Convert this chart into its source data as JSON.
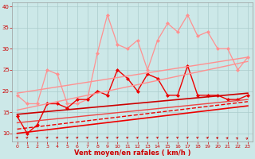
{
  "xlabel": "Vent moyen/en rafales ( km/h )",
  "xlim": [
    -0.5,
    23.5
  ],
  "ylim": [
    8,
    41
  ],
  "yticks": [
    10,
    15,
    20,
    25,
    30,
    35,
    40
  ],
  "xticks": [
    0,
    1,
    2,
    3,
    4,
    5,
    6,
    7,
    8,
    9,
    10,
    11,
    12,
    13,
    14,
    15,
    16,
    17,
    18,
    19,
    20,
    21,
    22,
    23
  ],
  "bg_color": "#cce8e8",
  "grid_color": "#aacccc",
  "series": [
    {
      "x": [
        0,
        1,
        2,
        3,
        4,
        5,
        6,
        7,
        8,
        9,
        10,
        11,
        12,
        13,
        14,
        15,
        16,
        17,
        18,
        19,
        20,
        21,
        22,
        23
      ],
      "y": [
        19,
        17,
        17,
        25,
        24,
        17,
        17,
        18,
        29,
        38,
        31,
        30,
        32,
        25,
        32,
        36,
        34,
        38,
        33,
        34,
        30,
        30,
        25,
        28
      ],
      "color": "#ff9090",
      "lw": 0.9,
      "marker": "D",
      "ms": 2.0,
      "ls": "-"
    },
    {
      "x": [
        0,
        1,
        2,
        3,
        4,
        5,
        6,
        7,
        8,
        9,
        10,
        11,
        12,
        13,
        14,
        15,
        16,
        17,
        18,
        19,
        20,
        21,
        22,
        23
      ],
      "y": [
        14,
        10,
        12,
        17,
        17,
        16,
        18,
        18,
        20,
        19,
        25,
        23,
        20,
        24,
        23,
        19,
        19,
        26,
        19,
        19,
        19,
        18,
        18,
        19
      ],
      "color": "#ee0000",
      "lw": 1.0,
      "marker": "D",
      "ms": 2.0,
      "ls": "-"
    },
    {
      "x": [
        0,
        23
      ],
      "y": [
        19.5,
        28.0
      ],
      "color": "#ff9090",
      "lw": 1.0,
      "marker": null,
      "ms": 0,
      "ls": "-"
    },
    {
      "x": [
        0,
        23
      ],
      "y": [
        15.5,
        27.0
      ],
      "color": "#ff9090",
      "lw": 1.0,
      "marker": null,
      "ms": 0,
      "ls": "-"
    },
    {
      "x": [
        0,
        23
      ],
      "y": [
        14.5,
        19.5
      ],
      "color": "#cc0000",
      "lw": 1.2,
      "marker": null,
      "ms": 0,
      "ls": "-"
    },
    {
      "x": [
        0,
        23
      ],
      "y": [
        12.5,
        18.0
      ],
      "color": "#ee4444",
      "lw": 1.0,
      "marker": null,
      "ms": 0,
      "ls": "-"
    },
    {
      "x": [
        0,
        23
      ],
      "y": [
        11.0,
        17.5
      ],
      "color": "#ee0000",
      "lw": 1.0,
      "marker": null,
      "ms": 0,
      "ls": "--"
    },
    {
      "x": [
        0,
        23
      ],
      "y": [
        10.0,
        16.5
      ],
      "color": "#ee0000",
      "lw": 1.2,
      "marker": null,
      "ms": 0,
      "ls": "-"
    }
  ],
  "arrow_color": "#cc0000",
  "arrow_angles": [
    90,
    90,
    90,
    90,
    90,
    90,
    90,
    90,
    90,
    90,
    90,
    90,
    90,
    90,
    90,
    90,
    90,
    90,
    105,
    115,
    125,
    135,
    145,
    155
  ]
}
